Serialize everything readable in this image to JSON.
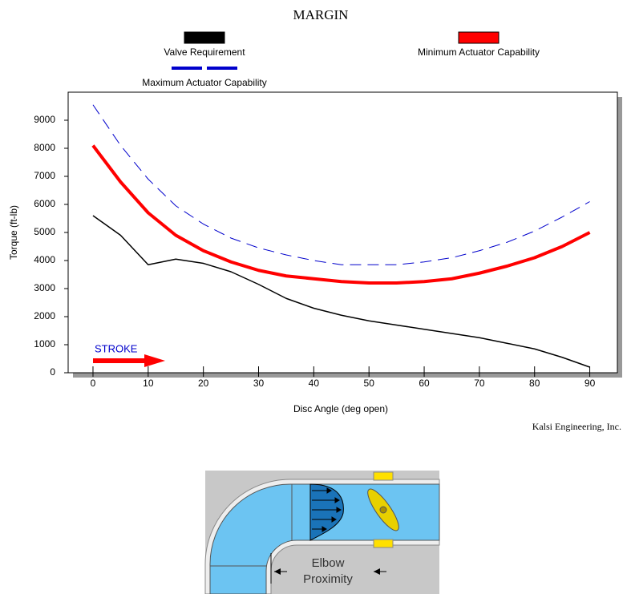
{
  "chart_data": {
    "type": "line",
    "title": "MARGIN",
    "x_label": "Disc Angle (deg open)",
    "y_label": "Torque (ft-lb)",
    "annotation": "STROKE",
    "credit": "Kalsi Engineering, Inc.",
    "x": [
      0,
      5,
      10,
      15,
      20,
      25,
      30,
      35,
      40,
      45,
      50,
      55,
      60,
      65,
      70,
      75,
      80,
      85,
      90
    ],
    "series": [
      {
        "name": "Valve Requirement",
        "color": "#000000",
        "style": "solid",
        "values": [
          5600,
          4900,
          3850,
          4050,
          3900,
          3600,
          3150,
          2650,
          2300,
          2050,
          1850,
          1700,
          1550,
          1400,
          1250,
          1050,
          850,
          550,
          200
        ]
      },
      {
        "name": "Minimum Actuator Capability",
        "color": "#ff0000",
        "style": "thick",
        "values": [
          8100,
          6800,
          5700,
          4900,
          4350,
          3950,
          3650,
          3450,
          3350,
          3250,
          3200,
          3200,
          3250,
          3350,
          3550,
          3800,
          4100,
          4500,
          5000
        ]
      },
      {
        "name": "Maximum Actuator Capability",
        "color": "#0000cc",
        "style": "dashed",
        "values": [
          9550,
          8100,
          6900,
          5950,
          5300,
          4800,
          4450,
          4200,
          4000,
          3850,
          3850,
          3850,
          3950,
          4100,
          4350,
          4650,
          5050,
          5550,
          6100
        ]
      }
    ],
    "xlim": [
      -4.5,
      95
    ],
    "ylim": [
      0,
      10000
    ],
    "xticks": [
      0,
      10,
      20,
      30,
      40,
      50,
      60,
      70,
      80,
      90
    ],
    "yticks": [
      0,
      1000,
      2000,
      3000,
      4000,
      5000,
      6000,
      7000,
      8000,
      9000
    ]
  },
  "diagram": {
    "label": [
      "Elbow",
      "Proximity"
    ]
  }
}
